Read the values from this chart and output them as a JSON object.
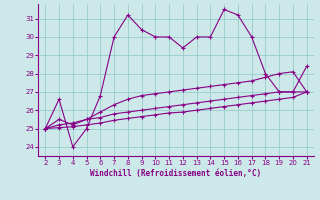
{
  "background_color": "#cce8e8",
  "grid_color": "#99cccc",
  "line_color": "#880088",
  "xlabel": "Windchill (Refroidissement éolien,°C)",
  "xlabel_color": "#880088",
  "xlim": [
    1.5,
    21.5
  ],
  "ylim": [
    23.5,
    31.8
  ],
  "yticks": [
    24,
    25,
    26,
    27,
    28,
    29,
    30,
    31
  ],
  "xticks": [
    2,
    3,
    4,
    5,
    6,
    7,
    8,
    9,
    10,
    11,
    12,
    13,
    14,
    15,
    16,
    17,
    18,
    19,
    20,
    21
  ],
  "series": [
    {
      "x": [
        2,
        3,
        4,
        5,
        6,
        7,
        8,
        9,
        10,
        11,
        12,
        13,
        14,
        15,
        16,
        17,
        18,
        19,
        20,
        21
      ],
      "y": [
        25.0,
        26.6,
        24.0,
        25.0,
        26.8,
        30.0,
        31.2,
        30.4,
        30.0,
        30.0,
        29.4,
        30.0,
        30.0,
        31.5,
        31.2,
        30.0,
        28.0,
        27.0,
        27.0,
        28.4
      ]
    },
    {
      "x": [
        2,
        3,
        4,
        5,
        6,
        7,
        8,
        9,
        10,
        11,
        12,
        13,
        14,
        15,
        16,
        17,
        18,
        19,
        20,
        21
      ],
      "y": [
        25.0,
        25.5,
        25.2,
        25.5,
        25.9,
        26.3,
        26.6,
        26.8,
        26.9,
        27.0,
        27.1,
        27.2,
        27.3,
        27.4,
        27.5,
        27.6,
        27.8,
        28.0,
        28.1,
        27.0
      ]
    },
    {
      "x": [
        2,
        3,
        4,
        5,
        6,
        7,
        8,
        9,
        10,
        11,
        12,
        13,
        14,
        15,
        16,
        17,
        18,
        19,
        20,
        21
      ],
      "y": [
        25.0,
        25.2,
        25.3,
        25.5,
        25.6,
        25.8,
        25.9,
        26.0,
        26.1,
        26.2,
        26.3,
        26.4,
        26.5,
        26.6,
        26.7,
        26.8,
        26.9,
        27.0,
        27.0,
        27.0
      ]
    },
    {
      "x": [
        2,
        3,
        4,
        5,
        6,
        7,
        8,
        9,
        10,
        11,
        12,
        13,
        14,
        15,
        16,
        17,
        18,
        19,
        20,
        21
      ],
      "y": [
        25.0,
        25.05,
        25.1,
        25.2,
        25.3,
        25.45,
        25.55,
        25.65,
        25.75,
        25.85,
        25.9,
        26.0,
        26.1,
        26.2,
        26.3,
        26.4,
        26.5,
        26.6,
        26.7,
        27.0
      ]
    }
  ]
}
